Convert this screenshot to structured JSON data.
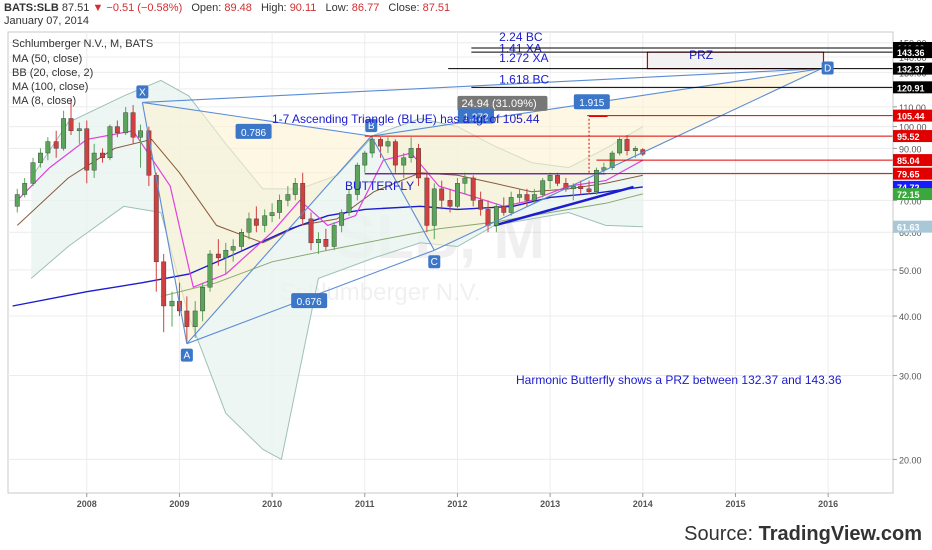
{
  "header": {
    "symbol": "BATS:SLB",
    "last": "87.51",
    "arrow": "▼",
    "change": "−0.51 (−0.58%)",
    "open_label": "Open:",
    "open": "89.48",
    "high_label": "High:",
    "high": "90.11",
    "low_label": "Low:",
    "low": "86.77",
    "close_label": "Close:",
    "close": "87.51",
    "date": "January 07, 2014"
  },
  "legend": {
    "title": "Schlumberger N.V., M, BATS",
    "studies": [
      "MA (50, close)",
      "BB (20, close, 2)",
      "MA (100, close)",
      "MA (8, close)"
    ]
  },
  "watermark": {
    "big": "SLB, M",
    "small": "Schlumberger N.V."
  },
  "annotations": {
    "triangle_text": "1-7 Ascending Triangle (BLUE) has a tgt of 105.44",
    "butterfly": "BUTTERFLY",
    "harmonic_text": "Harmonic Butterfly shows a PRZ between 132.37 and 143.36",
    "prz": "PRZ",
    "measure_box": "24.94 (31.09%)",
    "fib": [
      {
        "label": "2.24 BC",
        "value": 148.5
      },
      {
        "label": "1.41 XA",
        "value": 140.5
      },
      {
        "label": "1.272 XA",
        "value": 134.2
      },
      {
        "label": "1.618 BC",
        "value": 120.91
      }
    ],
    "pattern_ratios": [
      {
        "label": "0.786"
      },
      {
        "label": "1.272"
      },
      {
        "label": "1.915"
      },
      {
        "label": "0.676"
      }
    ],
    "points": [
      {
        "label": "X",
        "date": 2008.6,
        "value": 112.4
      },
      {
        "label": "A",
        "date": 2009.08,
        "value": 35
      },
      {
        "label": "B",
        "date": 2011.07,
        "value": 95.5
      },
      {
        "label": "C",
        "date": 2011.75,
        "value": 55
      },
      {
        "label": "D",
        "date": 2015.93,
        "value": 132.4
      }
    ]
  },
  "price_levels": [
    {
      "value": 146.23,
      "label": "146.23",
      "color": "#000000",
      "line_from": 2012.15
    },
    {
      "value": 143.36,
      "label": "143.36",
      "color": "#000000",
      "line_from": 2012.15
    },
    {
      "value": 132.37,
      "label": "132.37",
      "color": "#000000",
      "line_from": 2011.9
    },
    {
      "value": 120.91,
      "label": "120.91",
      "color": "#000000",
      "line_from": 2012.15
    },
    {
      "value": 105.44,
      "label": "105.44",
      "color": "#e00000",
      "line_from": 2013.4
    },
    {
      "value": 95.52,
      "label": "95.52",
      "color": "#e00000",
      "line_from": 2011.0
    },
    {
      "value": 85.04,
      "label": "85.04",
      "color": "#e00000",
      "line_from": 2013.5
    },
    {
      "value": 79.65,
      "label": "79.65",
      "color": "#e00000",
      "line_from": 2011.0
    },
    {
      "value": 74.72,
      "label": "74.72",
      "color": "#1a1aff",
      "line_from": null
    },
    {
      "value": 72.15,
      "label": "72.15",
      "color": "#3aa83a",
      "line_from": null
    },
    {
      "value": 61.63,
      "label": "61.63",
      "color": "#a8c8d8",
      "line_from": null
    }
  ],
  "chart_data": {
    "type": "candlestick",
    "y_scale": "log",
    "ylim": [
      17,
      158
    ],
    "xlim": [
      2007.15,
      2016.7
    ],
    "y_ticks": [
      20,
      30,
      40,
      50,
      60,
      70,
      80,
      90,
      100,
      110,
      120,
      130,
      140,
      150
    ],
    "x_ticks": [
      2008,
      2009,
      2010,
      2011,
      2012,
      2013,
      2014,
      2015,
      2016
    ],
    "colors": {
      "up": "#5aa55a",
      "down": "#d04040",
      "ma50": "#1c1cd0",
      "ma100": "#8aa86e",
      "ma8": "#e040e0",
      "bb_mid": "#8b5a3c",
      "bb_band": "#9ec0b8",
      "pattern": "#5b8cd6",
      "triangle": "#1c1cd0",
      "measure": "#e00000",
      "tags": "#3b76c9"
    },
    "candles": [
      {
        "t": 2007.25,
        "o": 68,
        "h": 74,
        "l": 66,
        "c": 72
      },
      {
        "t": 2007.33,
        "o": 72,
        "h": 78,
        "l": 71,
        "c": 76
      },
      {
        "t": 2007.42,
        "o": 76,
        "h": 86,
        "l": 75,
        "c": 84
      },
      {
        "t": 2007.5,
        "o": 84,
        "h": 90,
        "l": 82,
        "c": 88
      },
      {
        "t": 2007.58,
        "o": 88,
        "h": 95,
        "l": 85,
        "c": 93
      },
      {
        "t": 2007.67,
        "o": 93,
        "h": 98,
        "l": 86,
        "c": 90
      },
      {
        "t": 2007.75,
        "o": 90,
        "h": 108,
        "l": 89,
        "c": 104
      },
      {
        "t": 2007.83,
        "o": 104,
        "h": 114,
        "l": 96,
        "c": 98
      },
      {
        "t": 2007.92,
        "o": 98,
        "h": 102,
        "l": 92,
        "c": 99
      },
      {
        "t": 2008.0,
        "o": 99,
        "h": 103,
        "l": 76,
        "c": 81
      },
      {
        "t": 2008.08,
        "o": 81,
        "h": 92,
        "l": 78,
        "c": 88
      },
      {
        "t": 2008.17,
        "o": 88,
        "h": 90,
        "l": 84,
        "c": 86
      },
      {
        "t": 2008.25,
        "o": 86,
        "h": 101,
        "l": 85,
        "c": 100
      },
      {
        "t": 2008.33,
        "o": 100,
        "h": 103,
        "l": 95,
        "c": 97
      },
      {
        "t": 2008.42,
        "o": 97,
        "h": 110,
        "l": 96,
        "c": 107
      },
      {
        "t": 2008.5,
        "o": 107,
        "h": 111,
        "l": 92,
        "c": 95
      },
      {
        "t": 2008.58,
        "o": 95,
        "h": 101,
        "l": 82,
        "c": 98
      },
      {
        "t": 2008.67,
        "o": 98,
        "h": 100,
        "l": 75,
        "c": 79
      },
      {
        "t": 2008.75,
        "o": 79,
        "h": 80,
        "l": 45,
        "c": 52
      },
      {
        "t": 2008.83,
        "o": 52,
        "h": 54,
        "l": 37,
        "c": 42
      },
      {
        "t": 2008.92,
        "o": 42,
        "h": 45,
        "l": 38,
        "c": 43
      },
      {
        "t": 2009.0,
        "o": 43,
        "h": 47,
        "l": 40,
        "c": 41
      },
      {
        "t": 2009.08,
        "o": 41,
        "h": 44,
        "l": 35,
        "c": 38
      },
      {
        "t": 2009.17,
        "o": 38,
        "h": 43,
        "l": 36,
        "c": 41
      },
      {
        "t": 2009.25,
        "o": 41,
        "h": 47,
        "l": 39,
        "c": 46
      },
      {
        "t": 2009.33,
        "o": 46,
        "h": 55,
        "l": 45,
        "c": 54
      },
      {
        "t": 2009.42,
        "o": 54,
        "h": 58,
        "l": 51,
        "c": 53
      },
      {
        "t": 2009.5,
        "o": 53,
        "h": 57,
        "l": 49,
        "c": 55
      },
      {
        "t": 2009.58,
        "o": 55,
        "h": 58,
        "l": 52,
        "c": 56
      },
      {
        "t": 2009.67,
        "o": 56,
        "h": 61,
        "l": 55,
        "c": 60
      },
      {
        "t": 2009.75,
        "o": 60,
        "h": 66,
        "l": 58,
        "c": 64
      },
      {
        "t": 2009.83,
        "o": 64,
        "h": 68,
        "l": 60,
        "c": 62
      },
      {
        "t": 2009.92,
        "o": 62,
        "h": 67,
        "l": 60,
        "c": 65
      },
      {
        "t": 2010.0,
        "o": 65,
        "h": 69,
        "l": 63,
        "c": 66
      },
      {
        "t": 2010.08,
        "o": 66,
        "h": 72,
        "l": 64,
        "c": 70
      },
      {
        "t": 2010.17,
        "o": 70,
        "h": 75,
        "l": 68,
        "c": 72
      },
      {
        "t": 2010.25,
        "o": 72,
        "h": 78,
        "l": 70,
        "c": 76
      },
      {
        "t": 2010.33,
        "o": 76,
        "h": 80,
        "l": 62,
        "c": 64
      },
      {
        "t": 2010.42,
        "o": 64,
        "h": 66,
        "l": 55,
        "c": 57
      },
      {
        "t": 2010.5,
        "o": 57,
        "h": 60,
        "l": 54,
        "c": 58
      },
      {
        "t": 2010.58,
        "o": 58,
        "h": 61,
        "l": 55,
        "c": 56
      },
      {
        "t": 2010.67,
        "o": 56,
        "h": 63,
        "l": 55,
        "c": 62
      },
      {
        "t": 2010.75,
        "o": 62,
        "h": 67,
        "l": 60,
        "c": 66
      },
      {
        "t": 2010.83,
        "o": 66,
        "h": 74,
        "l": 65,
        "c": 72
      },
      {
        "t": 2010.92,
        "o": 72,
        "h": 84,
        "l": 70,
        "c": 83
      },
      {
        "t": 2011.0,
        "o": 83,
        "h": 89,
        "l": 80,
        "c": 88
      },
      {
        "t": 2011.08,
        "o": 88,
        "h": 96,
        "l": 86,
        "c": 94
      },
      {
        "t": 2011.17,
        "o": 94,
        "h": 95,
        "l": 86,
        "c": 91
      },
      {
        "t": 2011.25,
        "o": 91,
        "h": 95,
        "l": 88,
        "c": 93
      },
      {
        "t": 2011.33,
        "o": 93,
        "h": 94,
        "l": 80,
        "c": 83
      },
      {
        "t": 2011.42,
        "o": 83,
        "h": 88,
        "l": 78,
        "c": 86
      },
      {
        "t": 2011.5,
        "o": 86,
        "h": 95,
        "l": 84,
        "c": 90
      },
      {
        "t": 2011.58,
        "o": 90,
        "h": 92,
        "l": 75,
        "c": 78
      },
      {
        "t": 2011.67,
        "o": 78,
        "h": 80,
        "l": 60,
        "c": 62
      },
      {
        "t": 2011.75,
        "o": 62,
        "h": 76,
        "l": 58,
        "c": 74
      },
      {
        "t": 2011.83,
        "o": 74,
        "h": 77,
        "l": 67,
        "c": 70
      },
      {
        "t": 2011.92,
        "o": 70,
        "h": 74,
        "l": 66,
        "c": 68
      },
      {
        "t": 2012.0,
        "o": 68,
        "h": 78,
        "l": 67,
        "c": 76
      },
      {
        "t": 2012.08,
        "o": 76,
        "h": 80,
        "l": 72,
        "c": 78
      },
      {
        "t": 2012.17,
        "o": 78,
        "h": 79,
        "l": 68,
        "c": 70
      },
      {
        "t": 2012.25,
        "o": 70,
        "h": 73,
        "l": 65,
        "c": 67
      },
      {
        "t": 2012.33,
        "o": 67,
        "h": 70,
        "l": 60,
        "c": 62
      },
      {
        "t": 2012.42,
        "o": 62,
        "h": 69,
        "l": 60,
        "c": 68
      },
      {
        "t": 2012.5,
        "o": 68,
        "h": 71,
        "l": 65,
        "c": 66
      },
      {
        "t": 2012.58,
        "o": 66,
        "h": 73,
        "l": 65,
        "c": 71
      },
      {
        "t": 2012.67,
        "o": 71,
        "h": 74,
        "l": 69,
        "c": 72
      },
      {
        "t": 2012.75,
        "o": 72,
        "h": 74,
        "l": 68,
        "c": 70
      },
      {
        "t": 2012.83,
        "o": 70,
        "h": 74,
        "l": 69,
        "c": 72
      },
      {
        "t": 2012.92,
        "o": 72,
        "h": 78,
        "l": 71,
        "c": 77
      },
      {
        "t": 2013.0,
        "o": 77,
        "h": 80,
        "l": 74,
        "c": 79
      },
      {
        "t": 2013.08,
        "o": 79,
        "h": 80,
        "l": 75,
        "c": 76
      },
      {
        "t": 2013.17,
        "o": 76,
        "h": 78,
        "l": 73,
        "c": 74
      },
      {
        "t": 2013.25,
        "o": 74,
        "h": 76,
        "l": 70,
        "c": 75
      },
      {
        "t": 2013.33,
        "o": 75,
        "h": 77,
        "l": 72,
        "c": 74
      },
      {
        "t": 2013.42,
        "o": 74,
        "h": 77,
        "l": 72,
        "c": 73
      },
      {
        "t": 2013.5,
        "o": 73,
        "h": 82,
        "l": 72,
        "c": 81
      },
      {
        "t": 2013.58,
        "o": 81,
        "h": 84,
        "l": 80,
        "c": 82
      },
      {
        "t": 2013.67,
        "o": 82,
        "h": 89,
        "l": 81,
        "c": 88
      },
      {
        "t": 2013.75,
        "o": 88,
        "h": 95,
        "l": 87,
        "c": 94
      },
      {
        "t": 2013.83,
        "o": 94,
        "h": 96,
        "l": 87,
        "c": 89
      },
      {
        "t": 2013.92,
        "o": 89,
        "h": 91,
        "l": 86,
        "c": 90
      },
      {
        "t": 2014.0,
        "o": 89.48,
        "h": 90.11,
        "l": 86.77,
        "c": 87.51
      }
    ],
    "ma50": [
      [
        2007.2,
        42
      ],
      [
        2008.0,
        45
      ],
      [
        2008.6,
        47
      ],
      [
        2009.1,
        49
      ],
      [
        2009.6,
        54
      ],
      [
        2010.2,
        61
      ],
      [
        2010.6,
        65
      ],
      [
        2011.0,
        67
      ],
      [
        2011.6,
        68
      ],
      [
        2012.0,
        67
      ],
      [
        2012.6,
        68
      ],
      [
        2013.0,
        71
      ],
      [
        2013.5,
        72.5
      ],
      [
        2014.0,
        74.7
      ]
    ],
    "ma100": [
      [
        2008.8,
        44
      ],
      [
        2009.4,
        47
      ],
      [
        2010.0,
        52
      ],
      [
        2010.6,
        55
      ],
      [
        2011.2,
        58
      ],
      [
        2011.8,
        61
      ],
      [
        2012.4,
        63
      ],
      [
        2013.0,
        66
      ],
      [
        2013.6,
        69
      ],
      [
        2014.0,
        72.2
      ]
    ],
    "ma8": [
      [
        2007.25,
        70
      ],
      [
        2007.6,
        82
      ],
      [
        2008.0,
        94
      ],
      [
        2008.5,
        98
      ],
      [
        2008.9,
        75
      ],
      [
        2009.15,
        46
      ],
      [
        2009.5,
        49
      ],
      [
        2010.0,
        60
      ],
      [
        2010.3,
        70
      ],
      [
        2010.6,
        62
      ],
      [
        2010.9,
        65
      ],
      [
        2011.2,
        85
      ],
      [
        2011.5,
        88
      ],
      [
        2011.8,
        75
      ],
      [
        2012.1,
        72
      ],
      [
        2012.5,
        68
      ],
      [
        2012.8,
        70
      ],
      [
        2013.2,
        75
      ],
      [
        2013.6,
        77
      ],
      [
        2014.0,
        85
      ]
    ],
    "bb_mid": [
      [
        2007.25,
        62
      ],
      [
        2007.8,
        78
      ],
      [
        2008.3,
        90
      ],
      [
        2008.7,
        94
      ],
      [
        2009.0,
        80
      ],
      [
        2009.4,
        62
      ],
      [
        2009.9,
        57
      ],
      [
        2010.3,
        62
      ],
      [
        2010.7,
        64
      ],
      [
        2011.1,
        73
      ],
      [
        2011.6,
        80
      ],
      [
        2012.0,
        79
      ],
      [
        2012.4,
        76
      ],
      [
        2012.8,
        73
      ],
      [
        2013.2,
        74
      ],
      [
        2013.6,
        76
      ],
      [
        2014.0,
        79
      ]
    ],
    "bb_upper": [
      [
        2007.4,
        78
      ],
      [
        2007.8,
        102
      ],
      [
        2008.4,
        116
      ],
      [
        2008.8,
        125
      ],
      [
        2009.1,
        116
      ],
      [
        2009.5,
        92
      ],
      [
        2009.9,
        74
      ],
      [
        2010.3,
        74
      ],
      [
        2010.7,
        79
      ],
      [
        2011.1,
        96
      ],
      [
        2011.6,
        104
      ],
      [
        2012.0,
        100
      ],
      [
        2012.4,
        91
      ],
      [
        2012.8,
        84
      ],
      [
        2013.2,
        82
      ],
      [
        2013.6,
        90
      ],
      [
        2014.0,
        100
      ]
    ],
    "bb_lower": [
      [
        2007.4,
        48
      ],
      [
        2007.8,
        56
      ],
      [
        2008.4,
        68
      ],
      [
        2008.8,
        66
      ],
      [
        2009.1,
        40
      ],
      [
        2009.5,
        25
      ],
      [
        2009.9,
        21
      ],
      [
        2010.1,
        20
      ],
      [
        2010.5,
        48
      ],
      [
        2011.1,
        53
      ],
      [
        2011.6,
        57
      ],
      [
        2012.0,
        56
      ],
      [
        2012.4,
        62
      ],
      [
        2012.8,
        64
      ],
      [
        2013.2,
        66
      ],
      [
        2013.6,
        62
      ],
      [
        2014.0,
        61.6
      ]
    ],
    "triangle_top": [
      [
        2011.0,
        79.6
      ],
      [
        2013.6,
        79.6
      ]
    ],
    "triangle_bottom": [
      [
        2012.4,
        62
      ],
      [
        2013.9,
        74.7
      ]
    ]
  },
  "source": {
    "prefix": "Source: ",
    "brand": "TradingView.com"
  }
}
